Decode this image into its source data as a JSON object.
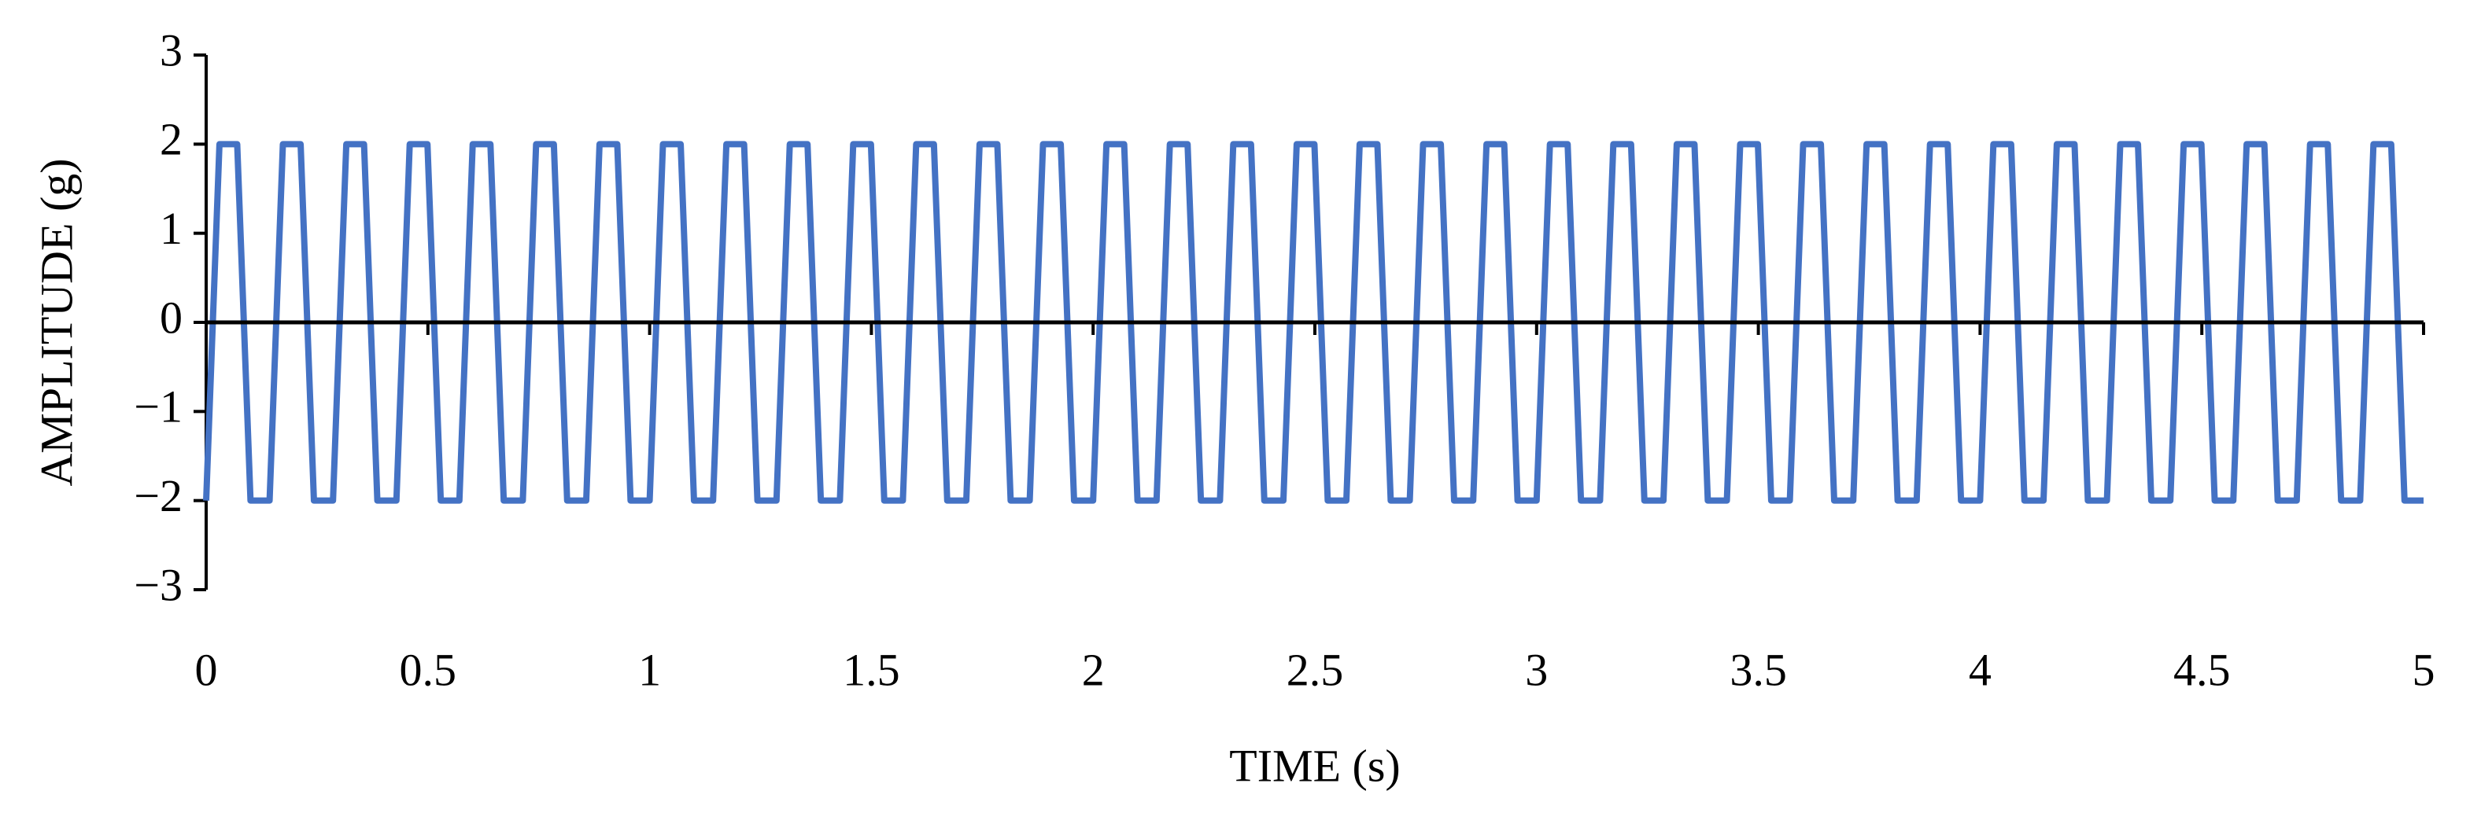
{
  "chart_data": {
    "type": "line",
    "xlabel": "TIME (s)",
    "ylabel": "AMPLITUDE (g)",
    "xlim": [
      0,
      5
    ],
    "ylim": [
      -3,
      3
    ],
    "xticks": [
      0,
      0.5,
      1,
      1.5,
      2,
      2.5,
      3,
      3.5,
      4,
      4.5,
      5
    ],
    "yticks": [
      {
        "value": -3,
        "label": "−3"
      },
      {
        "value": -2,
        "label": "−2"
      },
      {
        "value": -1,
        "label": "−1"
      },
      0,
      1,
      2,
      3
    ],
    "grid": false,
    "x": [
      0,
      0.03,
      0.07,
      0.1,
      0.143,
      0.173,
      0.213,
      0.243,
      0.286,
      0.316,
      0.356,
      0.386,
      0.429,
      0.459,
      0.499,
      0.529,
      0.571,
      0.601,
      0.641,
      0.671,
      0.714,
      0.744,
      0.784,
      0.814,
      0.857,
      0.887,
      0.927,
      0.957,
      1,
      1.03,
      1.07,
      1.1,
      1.143,
      1.173,
      1.213,
      1.243,
      1.286,
      1.316,
      1.356,
      1.386,
      1.429,
      1.459,
      1.499,
      1.529,
      1.571,
      1.601,
      1.641,
      1.671,
      1.714,
      1.744,
      1.784,
      1.814,
      1.857,
      1.887,
      1.927,
      1.957,
      2,
      2.03,
      2.07,
      2.1,
      2.143,
      2.173,
      2.213,
      2.243,
      2.286,
      2.316,
      2.356,
      2.386,
      2.429,
      2.459,
      2.499,
      2.529,
      2.571,
      2.601,
      2.641,
      2.671,
      2.714,
      2.744,
      2.784,
      2.814,
      2.857,
      2.887,
      2.927,
      2.957,
      3,
      3.03,
      3.07,
      3.1,
      3.143,
      3.173,
      3.213,
      3.243,
      3.286,
      3.316,
      3.356,
      3.386,
      3.429,
      3.459,
      3.499,
      3.529,
      3.571,
      3.601,
      3.641,
      3.671,
      3.714,
      3.744,
      3.784,
      3.814,
      3.857,
      3.887,
      3.927,
      3.957,
      4,
      4.03,
      4.07,
      4.1,
      4.143,
      4.173,
      4.213,
      4.243,
      4.286,
      4.316,
      4.356,
      4.386,
      4.429,
      4.459,
      4.499,
      4.529,
      4.571,
      4.601,
      4.641,
      4.671,
      4.714,
      4.744,
      4.784,
      4.814,
      4.857,
      4.887,
      4.927,
      4.957,
      5
    ],
    "series": [
      {
        "color": "#4472c4",
        "values": [
          -2,
          2,
          2,
          -2,
          -2,
          2,
          2,
          -2,
          -2,
          2,
          2,
          -2,
          -2,
          2,
          2,
          -2,
          -2,
          2,
          2,
          -2,
          -2,
          2,
          2,
          -2,
          -2,
          2,
          2,
          -2,
          -2,
          2,
          2,
          -2,
          -2,
          2,
          2,
          -2,
          -2,
          2,
          2,
          -2,
          -2,
          2,
          2,
          -2,
          -2,
          2,
          2,
          -2,
          -2,
          2,
          2,
          -2,
          -2,
          2,
          2,
          -2,
          -2,
          2,
          2,
          -2,
          -2,
          2,
          2,
          -2,
          -2,
          2,
          2,
          -2,
          -2,
          2,
          2,
          -2,
          -2,
          2,
          2,
          -2,
          -2,
          2,
          2,
          -2,
          -2,
          2,
          2,
          -2,
          -2,
          2,
          2,
          -2,
          -2,
          2,
          2,
          -2,
          -2,
          2,
          2,
          -2,
          -2,
          2,
          2,
          -2,
          -2,
          2,
          2,
          -2,
          -2,
          2,
          2,
          -2,
          -2,
          2,
          2,
          -2,
          -2,
          2,
          2,
          -2,
          -2,
          2,
          2,
          -2,
          -2,
          2,
          2,
          -2,
          -2,
          2,
          2,
          -2,
          -2,
          2,
          2,
          -2,
          -2,
          2,
          2,
          -2,
          -2,
          2,
          2,
          -2,
          -2
        ]
      }
    ]
  }
}
